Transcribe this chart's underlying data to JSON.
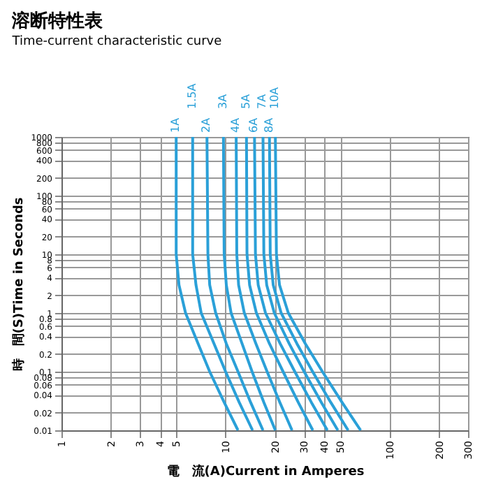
{
  "chart_data": {
    "type": "line",
    "title": "溶断特性表",
    "subtitle": "Time-current characteristic curve",
    "xlabel": "電　流(A)Current in Amperes",
    "ylabel": "時　間(S)Time in Seconds",
    "log": "xy",
    "grid": true,
    "legend": false,
    "marker": "none",
    "line_style": "solid",
    "xlim": [
      1,
      300
    ],
    "xticks": [
      1,
      2,
      3,
      4,
      5,
      10,
      20,
      30,
      40,
      50,
      100,
      200,
      300
    ],
    "ylim": [
      0.01,
      1000
    ],
    "yticks": [
      0.01,
      0.02,
      0.04,
      0.06,
      0.08,
      0.1,
      0.2,
      0.4,
      0.6,
      0.8,
      1,
      2,
      4,
      6,
      8,
      10,
      20,
      40,
      60,
      80,
      100,
      200,
      400,
      600,
      800,
      1000
    ],
    "series": [
      {
        "name": "1A",
        "color": "#2aa0d8",
        "x": [
          5.0,
          5.0,
          5.2,
          5.7,
          6.8,
          8.0,
          9.8,
          11.9
        ],
        "values": [
          1000,
          10,
          3,
          1,
          0.3,
          0.1,
          0.03,
          0.01
        ]
      },
      {
        "name": "1.5A",
        "color": "#2aa0d8",
        "x": [
          6.3,
          6.3,
          6.6,
          7.1,
          8.5,
          10,
          12.1,
          14.6
        ],
        "values": [
          1000,
          10,
          3,
          1,
          0.3,
          0.1,
          0.03,
          0.01
        ]
      },
      {
        "name": "2A",
        "color": "#2aa0d8",
        "x": [
          7.7,
          7.8,
          8.0,
          8.7,
          10.1,
          11.9,
          14.2,
          16.9
        ],
        "values": [
          1000,
          10,
          3,
          1,
          0.3,
          0.1,
          0.03,
          0.01
        ]
      },
      {
        "name": "3A",
        "color": "#2aa0d8",
        "x": [
          9.7,
          9.8,
          10.1,
          10.8,
          12.6,
          14.5,
          17.1,
          20.1
        ],
        "values": [
          1000,
          10,
          3,
          1,
          0.3,
          0.1,
          0.03,
          0.01
        ]
      },
      {
        "name": "4A",
        "color": "#2aa0d8",
        "x": [
          11.6,
          11.7,
          12.0,
          13.0,
          15.3,
          17.9,
          21.4,
          25.4
        ],
        "values": [
          1000,
          10,
          3,
          1,
          0.3,
          0.1,
          0.03,
          0.01
        ]
      },
      {
        "name": "5A",
        "color": "#2aa0d8",
        "x": [
          13.4,
          13.5,
          14.0,
          15.4,
          18.5,
          22.4,
          27.7,
          34.0
        ],
        "values": [
          1000,
          10,
          3,
          1,
          0.3,
          0.1,
          0.03,
          0.01
        ]
      },
      {
        "name": "6A",
        "color": "#2aa0d8",
        "x": [
          15.0,
          15.2,
          15.8,
          17.5,
          21.5,
          26.4,
          33.3,
          41.7
        ],
        "values": [
          1000,
          10,
          3,
          1,
          0.3,
          0.1,
          0.03,
          0.01
        ]
      },
      {
        "name": "7A",
        "color": "#2aa0d8",
        "x": [
          16.9,
          17.1,
          17.8,
          19.8,
          24.4,
          30.1,
          38.3,
          48.3
        ],
        "values": [
          1000,
          10,
          3,
          1,
          0.3,
          0.1,
          0.03,
          0.01
        ]
      },
      {
        "name": "8A",
        "color": "#2aa0d8",
        "x": [
          18.5,
          18.7,
          19.5,
          21.8,
          27.2,
          33.9,
          43.7,
          55.8
        ],
        "values": [
          1000,
          10,
          3,
          1,
          0.3,
          0.1,
          0.03,
          0.01
        ]
      },
      {
        "name": "10A",
        "color": "#2aa0d8",
        "x": [
          20.1,
          20.4,
          21.3,
          24.1,
          30.6,
          38.9,
          51.2,
          66.5
        ],
        "values": [
          1000,
          10,
          3,
          1,
          0.3,
          0.1,
          0.03,
          0.01
        ]
      }
    ]
  }
}
